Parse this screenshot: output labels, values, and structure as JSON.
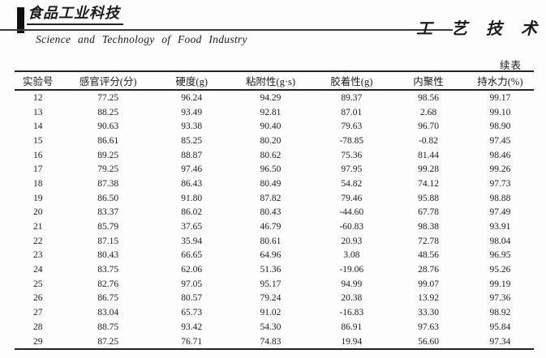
{
  "masthead": {
    "logo_cn": "食品工业科技",
    "journal_en": "Science  and  Technology  of  Food  Industry",
    "section_cn": "工 艺 技 术"
  },
  "continued_label": "续表",
  "table": {
    "columns": [
      "实验号",
      "感官评分(分)",
      "硬度(g)",
      "粘附性(g·s)",
      "胶着性(g)",
      "内聚性",
      "持水力(%)"
    ],
    "rows": [
      [
        "12",
        "77.25",
        "96.24",
        "94.29",
        "89.37",
        "98.56",
        "99.17"
      ],
      [
        "13",
        "88.25",
        "93.49",
        "92.81",
        "87.01",
        "2.68",
        "99.10"
      ],
      [
        "14",
        "90.63",
        "93.38",
        "90.40",
        "79.63",
        "96.70",
        "98.90"
      ],
      [
        "15",
        "86.61",
        "85.25",
        "80.20",
        "-78.85",
        "-0.82",
        "97.45"
      ],
      [
        "16",
        "89.25",
        "88.87",
        "80.62",
        "75.36",
        "81.44",
        "98.46"
      ],
      [
        "17",
        "79.25",
        "97.46",
        "96.50",
        "97.95",
        "99.28",
        "99.26"
      ],
      [
        "18",
        "87.38",
        "86.43",
        "80.49",
        "54.82",
        "74.12",
        "97.73"
      ],
      [
        "19",
        "86.50",
        "91.80",
        "87.82",
        "79.46",
        "95.88",
        "98.88"
      ],
      [
        "20",
        "83.37",
        "86.02",
        "80.43",
        "-44.60",
        "67.78",
        "97.49"
      ],
      [
        "21",
        "85.79",
        "37.65",
        "46.79",
        "-60.83",
        "98.38",
        "93.91"
      ],
      [
        "22",
        "87.15",
        "35.94",
        "80.61",
        "20.93",
        "72.78",
        "98.04"
      ],
      [
        "23",
        "80.43",
        "66.65",
        "64.96",
        "3.08",
        "48.56",
        "96.95"
      ],
      [
        "24",
        "83.75",
        "62.06",
        "51.36",
        "-19.06",
        "28.76",
        "95.26"
      ],
      [
        "25",
        "82.76",
        "97.05",
        "95.17",
        "94.99",
        "99.07",
        "99.19"
      ],
      [
        "26",
        "86.75",
        "80.57",
        "79.24",
        "20.38",
        "13.92",
        "97.36"
      ],
      [
        "27",
        "83.04",
        "65.73",
        "91.02",
        "-16.83",
        "33.30",
        "98.92"
      ],
      [
        "28",
        "88.75",
        "93.42",
        "54.30",
        "86.91",
        "97.63",
        "95.84"
      ],
      [
        "29",
        "87.25",
        "76.71",
        "74.83",
        "19.94",
        "56.60",
        "97.34"
      ]
    ],
    "col_widths": [
      "9%",
      "18%",
      "14.2%",
      "16.2%",
      "15%",
      "14.6%",
      "13%"
    ]
  }
}
